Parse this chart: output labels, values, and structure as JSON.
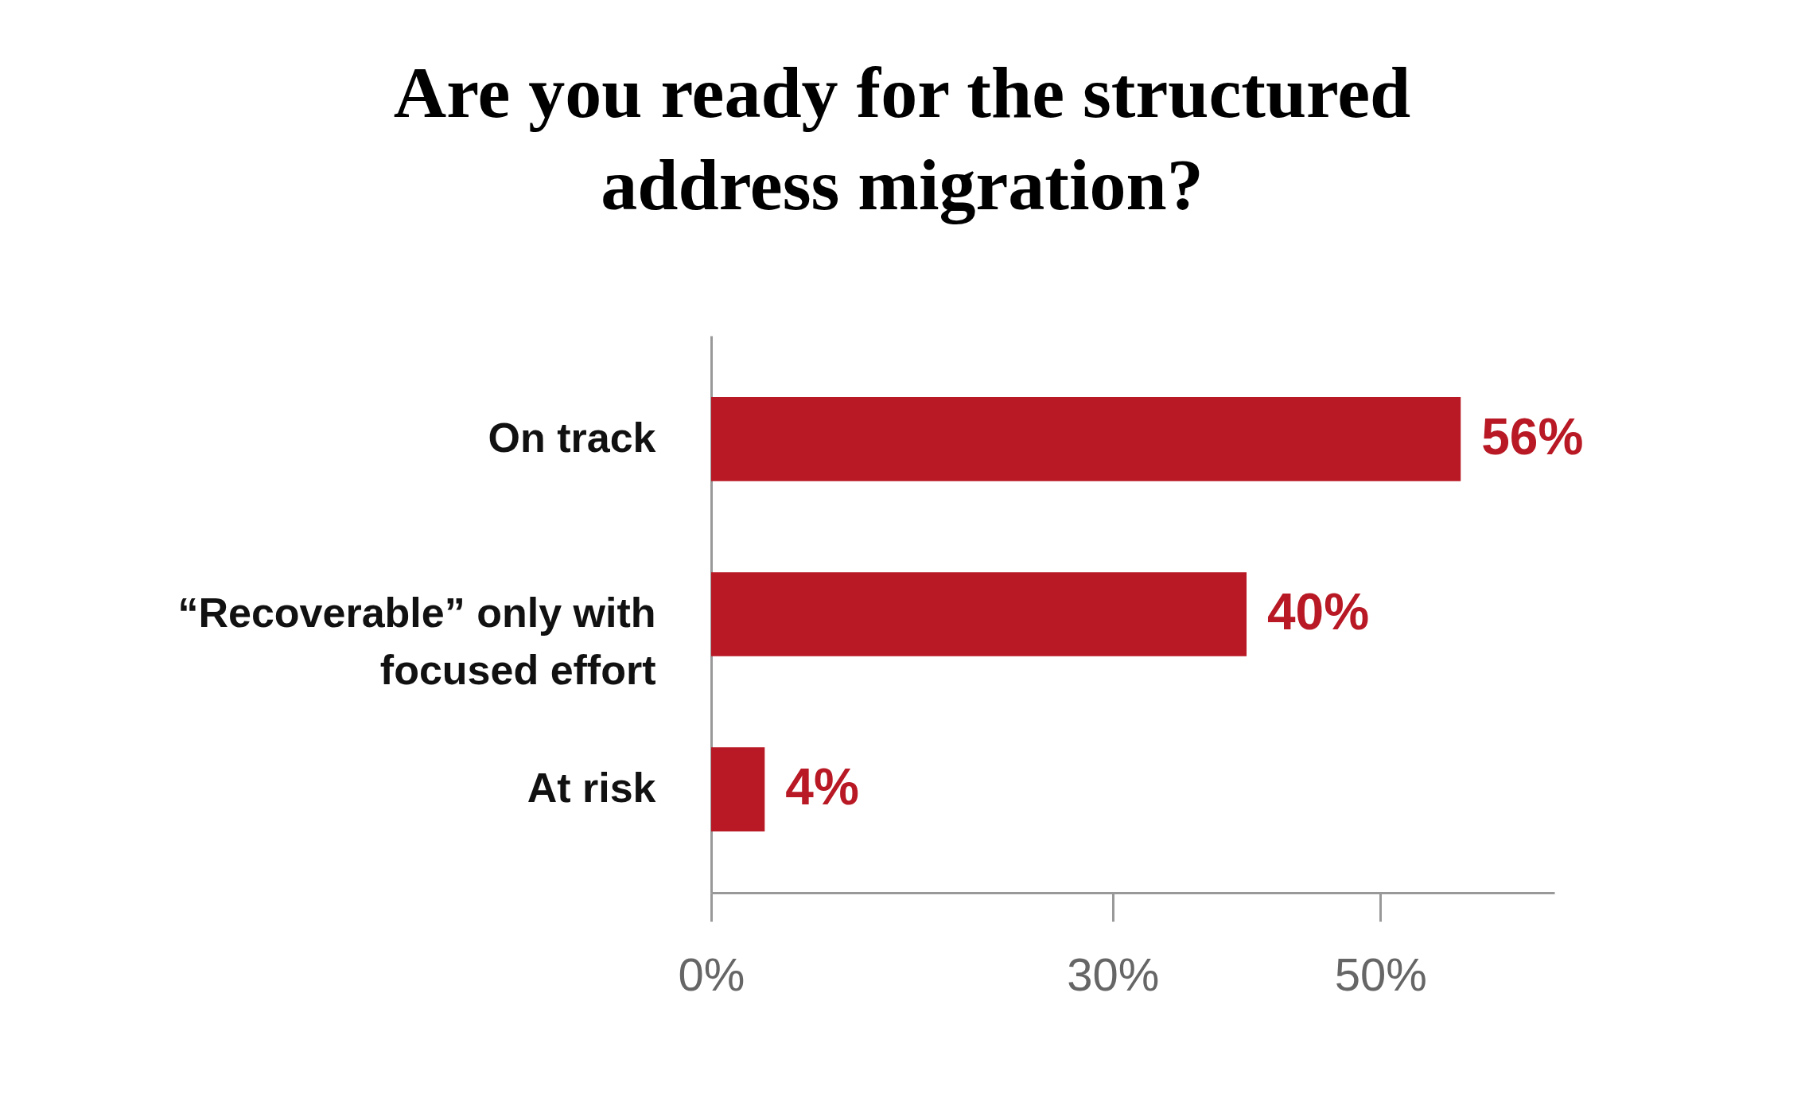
{
  "chart_data": {
    "type": "bar",
    "orientation": "horizontal",
    "title": "Are you ready for the structured address migration?",
    "categories": [
      "On track",
      "“Recoverable” only with focused effort",
      "At risk"
    ],
    "values": [
      56,
      40,
      4
    ],
    "value_labels": [
      "56%",
      "40%",
      "4%"
    ],
    "color": "#b81924",
    "xlim": [
      0,
      63
    ],
    "xticks": [
      {
        "value": 0,
        "label": "0%"
      },
      {
        "value": 30,
        "label": "30%"
      },
      {
        "value": 50,
        "label": "50%"
      }
    ],
    "grid": false
  }
}
